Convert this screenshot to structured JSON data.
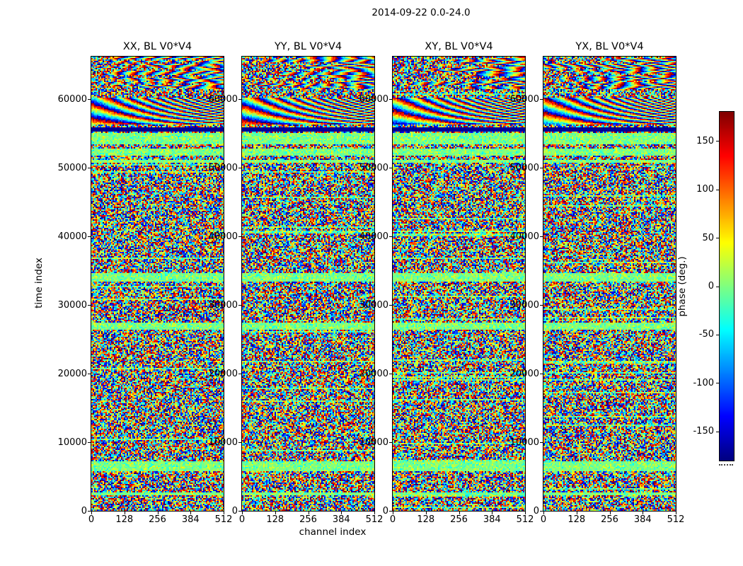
{
  "chart_data": {
    "type": "heatmap",
    "suptitle": "2014-09-22 0.0-24.0",
    "xlabel": "channel index",
    "ylabel": "time index",
    "panels": [
      {
        "title": "XX, BL V0*V4"
      },
      {
        "title": "YY, BL V0*V4"
      },
      {
        "title": "XY, BL V0*V4"
      },
      {
        "title": "YX, BL V0*V4"
      }
    ],
    "x_range": [
      0,
      512
    ],
    "y_range": [
      0,
      66200
    ],
    "x_ticks": [
      0,
      128,
      256,
      384,
      512
    ],
    "y_ticks": [
      0,
      10000,
      20000,
      30000,
      40000,
      50000,
      60000
    ],
    "value_label": "phase (deg.)",
    "value_range": [
      -180,
      180
    ],
    "colorbar_ticks": [
      150,
      100,
      50,
      0,
      -50,
      -100,
      -150
    ],
    "colormap": "jet",
    "colormap_stops": [
      [
        0.0,
        "#000080"
      ],
      [
        0.125,
        "#0000ff"
      ],
      [
        0.375,
        "#00ffff"
      ],
      [
        0.625,
        "#ffff00"
      ],
      [
        0.875,
        "#ff0000"
      ],
      [
        1.0,
        "#800000"
      ]
    ],
    "description": "Waterfall plots of visibility phase versus channel index and time index for the four polarization products (XX, YY, XY, YX) of baseline V0*V4 on 2014-09-22, hours 0.0-24.0. Most of each panel is uniformly random phase noise spanning -180..180 deg. Coherent fringe patterns (smooth rainbow sweeps whose fringe rate increases with channel) appear near time ~56000-60300 and intermittent high-rate fringes near the top (~61500-66200). Narrow near-zero-phase (green) horizontal bands occur near times ~2500, ~6500, ~27000, ~34000, ~51000 and ~52000-55000, with dark (about -180 deg) flagged rows near ~55400.",
    "features": {
      "green_bands": [
        [
          2250,
          2700
        ],
        [
          5700,
          7200
        ],
        [
          26300,
          27400
        ],
        [
          33400,
          34600
        ],
        [
          50700,
          51100
        ],
        [
          51700,
          52700
        ],
        [
          53400,
          55100
        ]
      ],
      "dark_rows": [
        [
          55200,
          55600
        ],
        [
          55750,
          55950
        ]
      ],
      "fringe_band": [
        56200,
        60300
      ],
      "fringe_top_band": [
        61500,
        66200
      ]
    }
  }
}
